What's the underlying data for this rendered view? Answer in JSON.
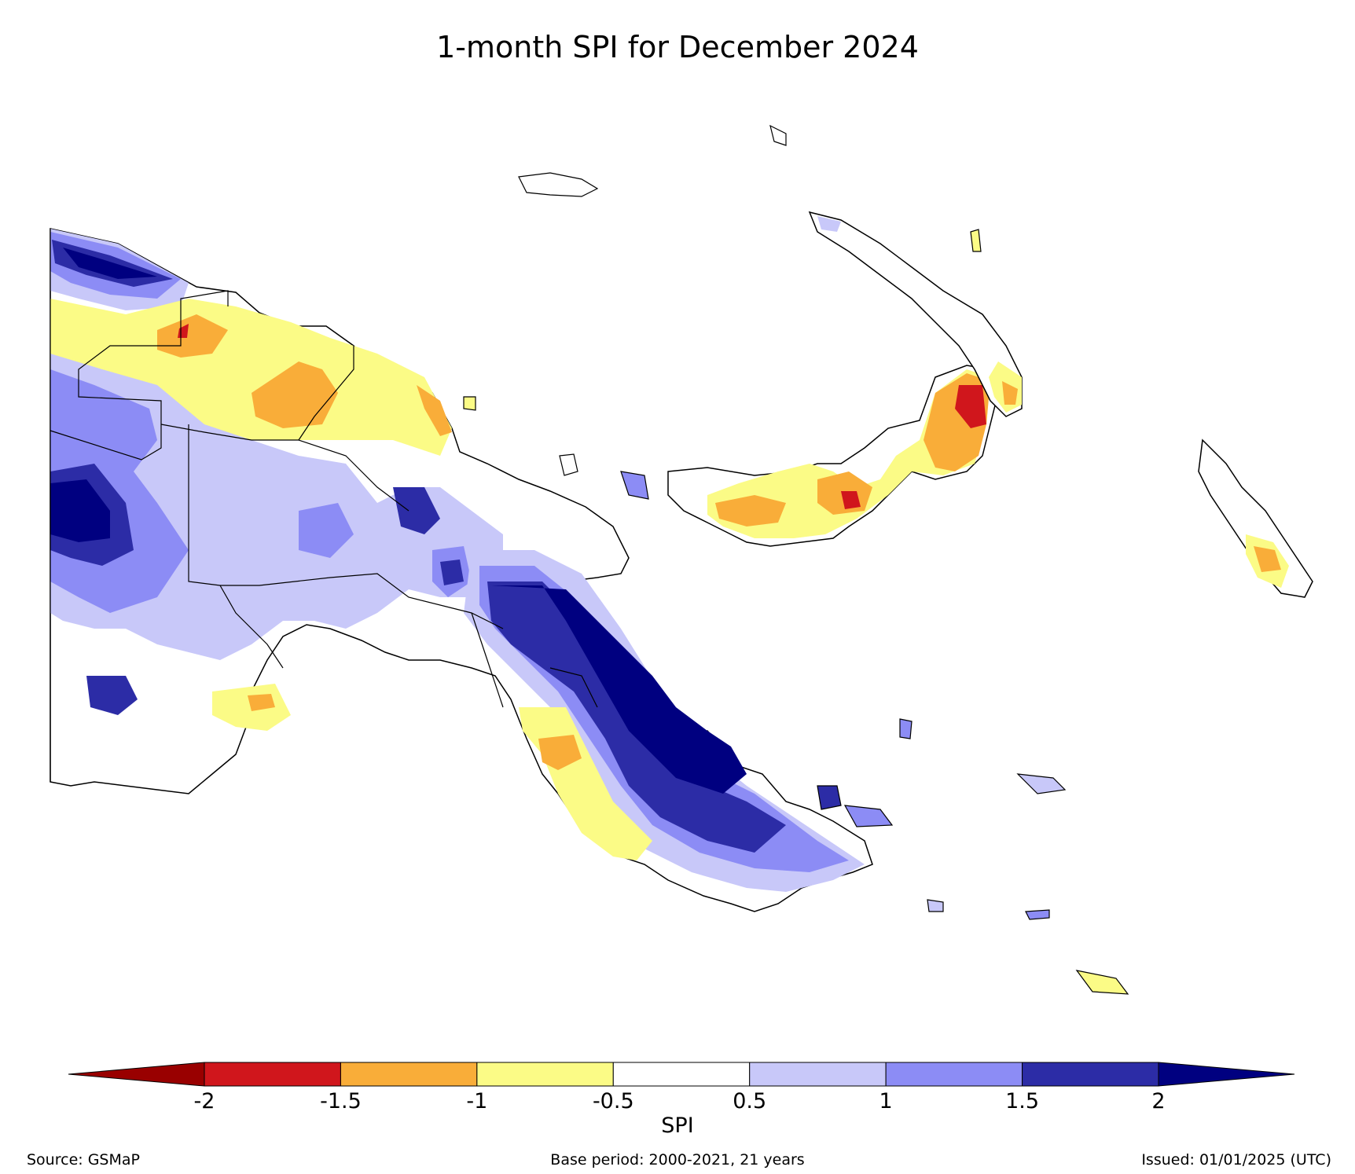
{
  "title": "1-month SPI for December 2024",
  "colorbar": {
    "label": "SPI",
    "ticks": [
      "-2",
      "-1.5",
      "-1",
      "-0.5",
      "0.5",
      "1",
      "1.5",
      "2"
    ],
    "colors": {
      "below_-2": "#990000",
      "-2_to_-1.5": "#d0161c",
      "-1.5_to_-1": "#f9ad39",
      "-1_to_-0.5": "#fbfb86",
      "-0.5_to_0.5": "#ffffff",
      "0.5_to_1": "#c8c8f9",
      "1_to_1.5": "#8c8cf5",
      "1.5_to_2": "#2c2ca6",
      "above_2": "#000080"
    }
  },
  "footer": {
    "source": "Source: GSMaP",
    "base_period": "Base period: 2000-2021, 21 years",
    "issued": "Issued: 01/01/2025 (UTC)"
  }
}
